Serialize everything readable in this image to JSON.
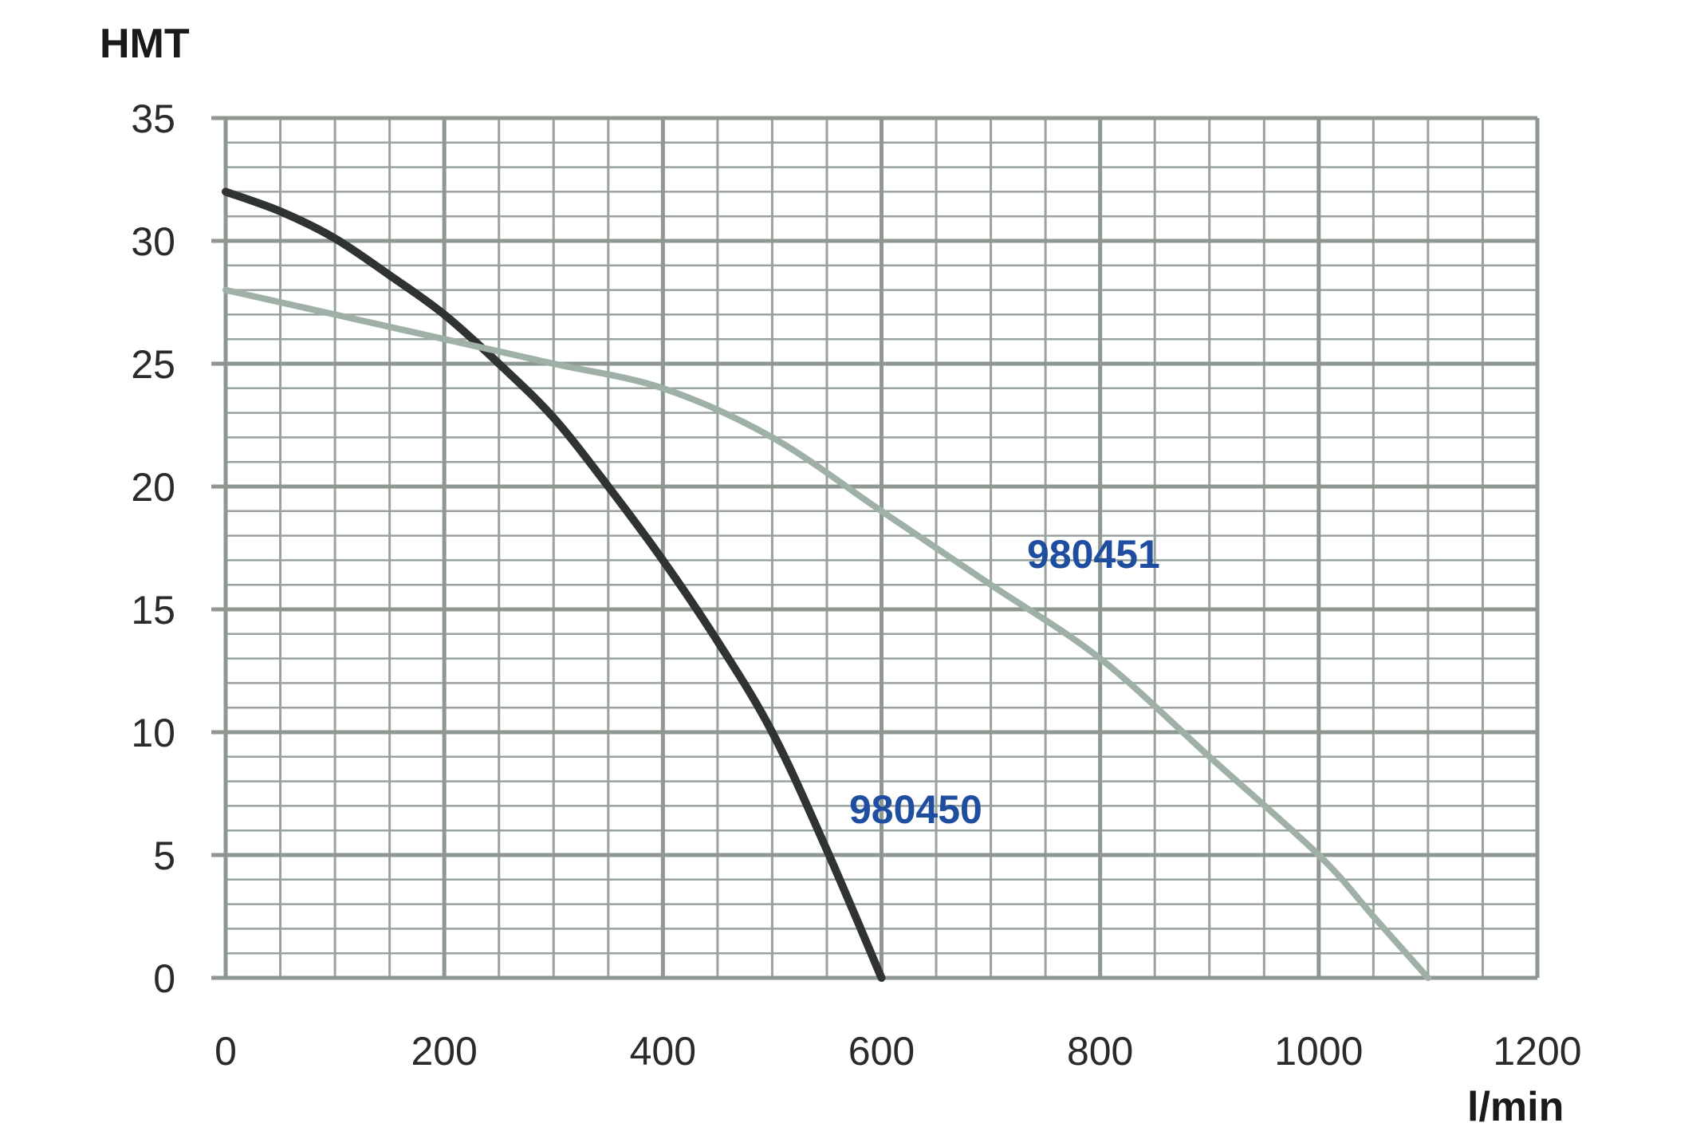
{
  "chart_data": {
    "type": "line",
    "title": "",
    "xlabel": "l/min",
    "ylabel": "HMT",
    "xlim": [
      0,
      1200
    ],
    "ylim": [
      0,
      35
    ],
    "x_ticks": [
      "0",
      "200",
      "400",
      "600",
      "800",
      "1000",
      "1200"
    ],
    "y_ticks": [
      "0",
      "5",
      "10",
      "15",
      "20",
      "25",
      "30",
      "35"
    ],
    "grid": true,
    "grid_color": "#9aa29c",
    "series": [
      {
        "name": "980450",
        "color": "#2f3331",
        "x": [
          0,
          50,
          100,
          150,
          200,
          250,
          300,
          350,
          400,
          450,
          500,
          550,
          600
        ],
        "y": [
          32,
          31.2,
          30.1,
          28.6,
          27,
          25,
          22.8,
          20,
          17,
          13.7,
          10,
          5.2,
          0
        ]
      },
      {
        "name": "980451",
        "color": "#9fb0a6",
        "x": [
          0,
          100,
          200,
          300,
          400,
          500,
          600,
          700,
          800,
          900,
          1000,
          1050,
          1100
        ],
        "y": [
          28,
          27,
          26,
          25,
          24,
          22,
          19,
          16,
          13,
          9,
          5,
          2.5,
          0
        ]
      }
    ],
    "label_color": "#1f4ea1"
  }
}
